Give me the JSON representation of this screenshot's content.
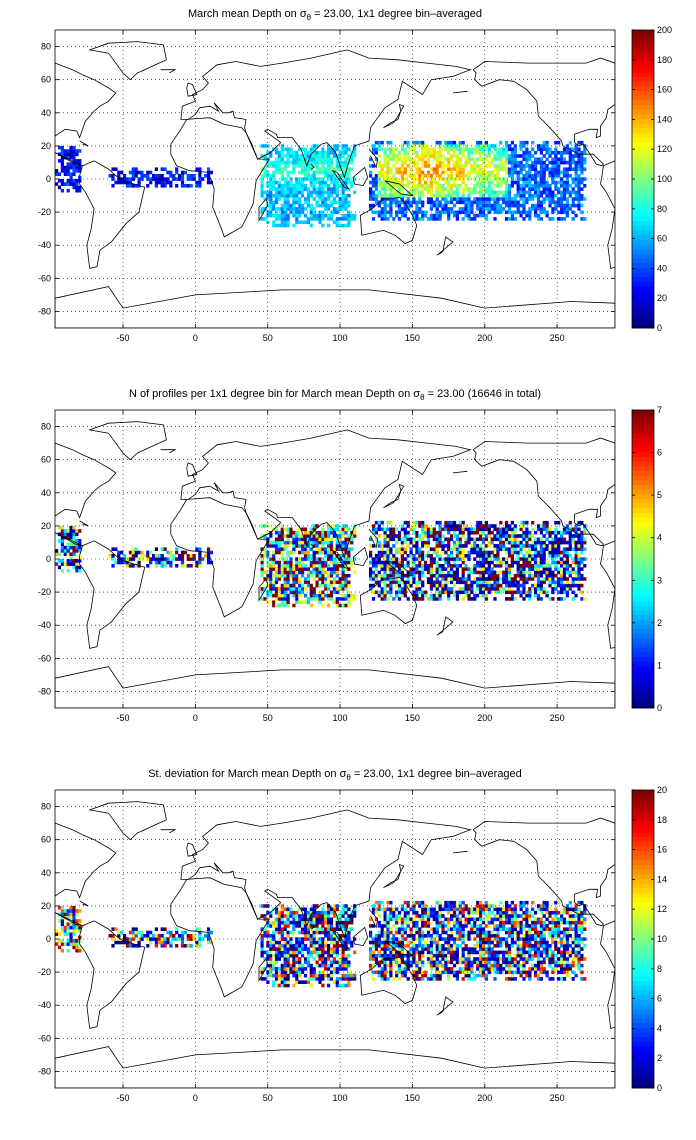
{
  "figure": {
    "panels": [
      {
        "title_parts": [
          "March mean Depth on ",
          "σ",
          "θ",
          " = 23.00, 1x1 degree bin–averaged"
        ],
        "colorbar": {
          "min": 0,
          "max": 200,
          "ticks": [
            "0",
            "20",
            "40",
            "60",
            "80",
            "100",
            "120",
            "140",
            "160",
            "180",
            "200"
          ]
        },
        "field": "depth"
      },
      {
        "title_parts": [
          "N of profiles per 1x1 degree bin for March mean Depth on ",
          "σ",
          "θ",
          " = 23.00 (16646 in total)"
        ],
        "colorbar": {
          "min": 0,
          "max": 7,
          "ticks": [
            "0",
            "1",
            "2",
            "3",
            "4",
            "5",
            "6",
            "7"
          ]
        },
        "field": "count"
      },
      {
        "title_parts": [
          "St. deviation for March mean Depth on ",
          "σ",
          "θ",
          " = 23.00, 1x1 degree bin–averaged"
        ],
        "colorbar": {
          "min": 0,
          "max": 20,
          "ticks": [
            "0",
            "2",
            "4",
            "6",
            "8",
            "10",
            "12",
            "14",
            "16",
            "18",
            "20"
          ]
        },
        "field": "std"
      }
    ],
    "x_ticks": [
      "-50",
      "0",
      "50",
      "100",
      "150",
      "200",
      "250"
    ],
    "y_ticks": [
      "80",
      "60",
      "40",
      "20",
      "0",
      "-20",
      "-40",
      "-60",
      "-80"
    ],
    "x_range": [
      -97,
      290
    ],
    "y_range": [
      -90,
      90
    ],
    "grid": "dotted",
    "colormap": "jet"
  }
}
